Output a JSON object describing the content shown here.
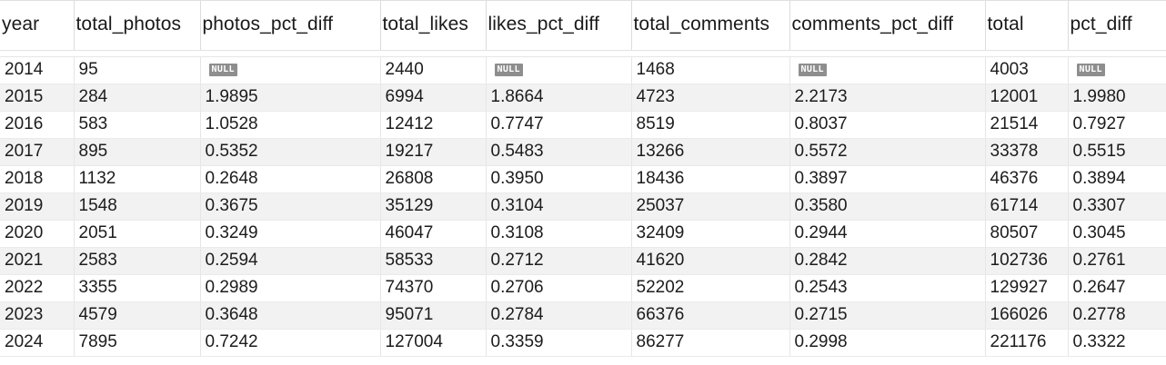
{
  "grid": {
    "null_label": "NULL",
    "columns": [
      "year",
      "total_photos",
      "photos_pct_diff",
      "total_likes",
      "likes_pct_diff",
      "total_comments",
      "comments_pct_diff",
      "total",
      "pct_diff"
    ],
    "rows": [
      [
        "2014",
        "95",
        null,
        "2440",
        null,
        "1468",
        null,
        "4003",
        null
      ],
      [
        "2015",
        "284",
        "1.9895",
        "6994",
        "1.8664",
        "4723",
        "2.2173",
        "12001",
        "1.9980"
      ],
      [
        "2016",
        "583",
        "1.0528",
        "12412",
        "0.7747",
        "8519",
        "0.8037",
        "21514",
        "0.7927"
      ],
      [
        "2017",
        "895",
        "0.5352",
        "19217",
        "0.5483",
        "13266",
        "0.5572",
        "33378",
        "0.5515"
      ],
      [
        "2018",
        "1132",
        "0.2648",
        "26808",
        "0.3950",
        "18436",
        "0.3897",
        "46376",
        "0.3894"
      ],
      [
        "2019",
        "1548",
        "0.3675",
        "35129",
        "0.3104",
        "25037",
        "0.3580",
        "61714",
        "0.3307"
      ],
      [
        "2020",
        "2051",
        "0.3249",
        "46047",
        "0.3108",
        "32409",
        "0.2944",
        "80507",
        "0.3045"
      ],
      [
        "2021",
        "2583",
        "0.2594",
        "58533",
        "0.2712",
        "41620",
        "0.2842",
        "102736",
        "0.2761"
      ],
      [
        "2022",
        "3355",
        "0.2989",
        "74370",
        "0.2706",
        "52202",
        "0.2543",
        "129927",
        "0.2647"
      ],
      [
        "2023",
        "4579",
        "0.3648",
        "95071",
        "0.2784",
        "66376",
        "0.2715",
        "166026",
        "0.2778"
      ],
      [
        "2024",
        "7895",
        "0.7242",
        "127004",
        "0.3359",
        "86277",
        "0.2998",
        "221176",
        "0.3322"
      ]
    ]
  }
}
